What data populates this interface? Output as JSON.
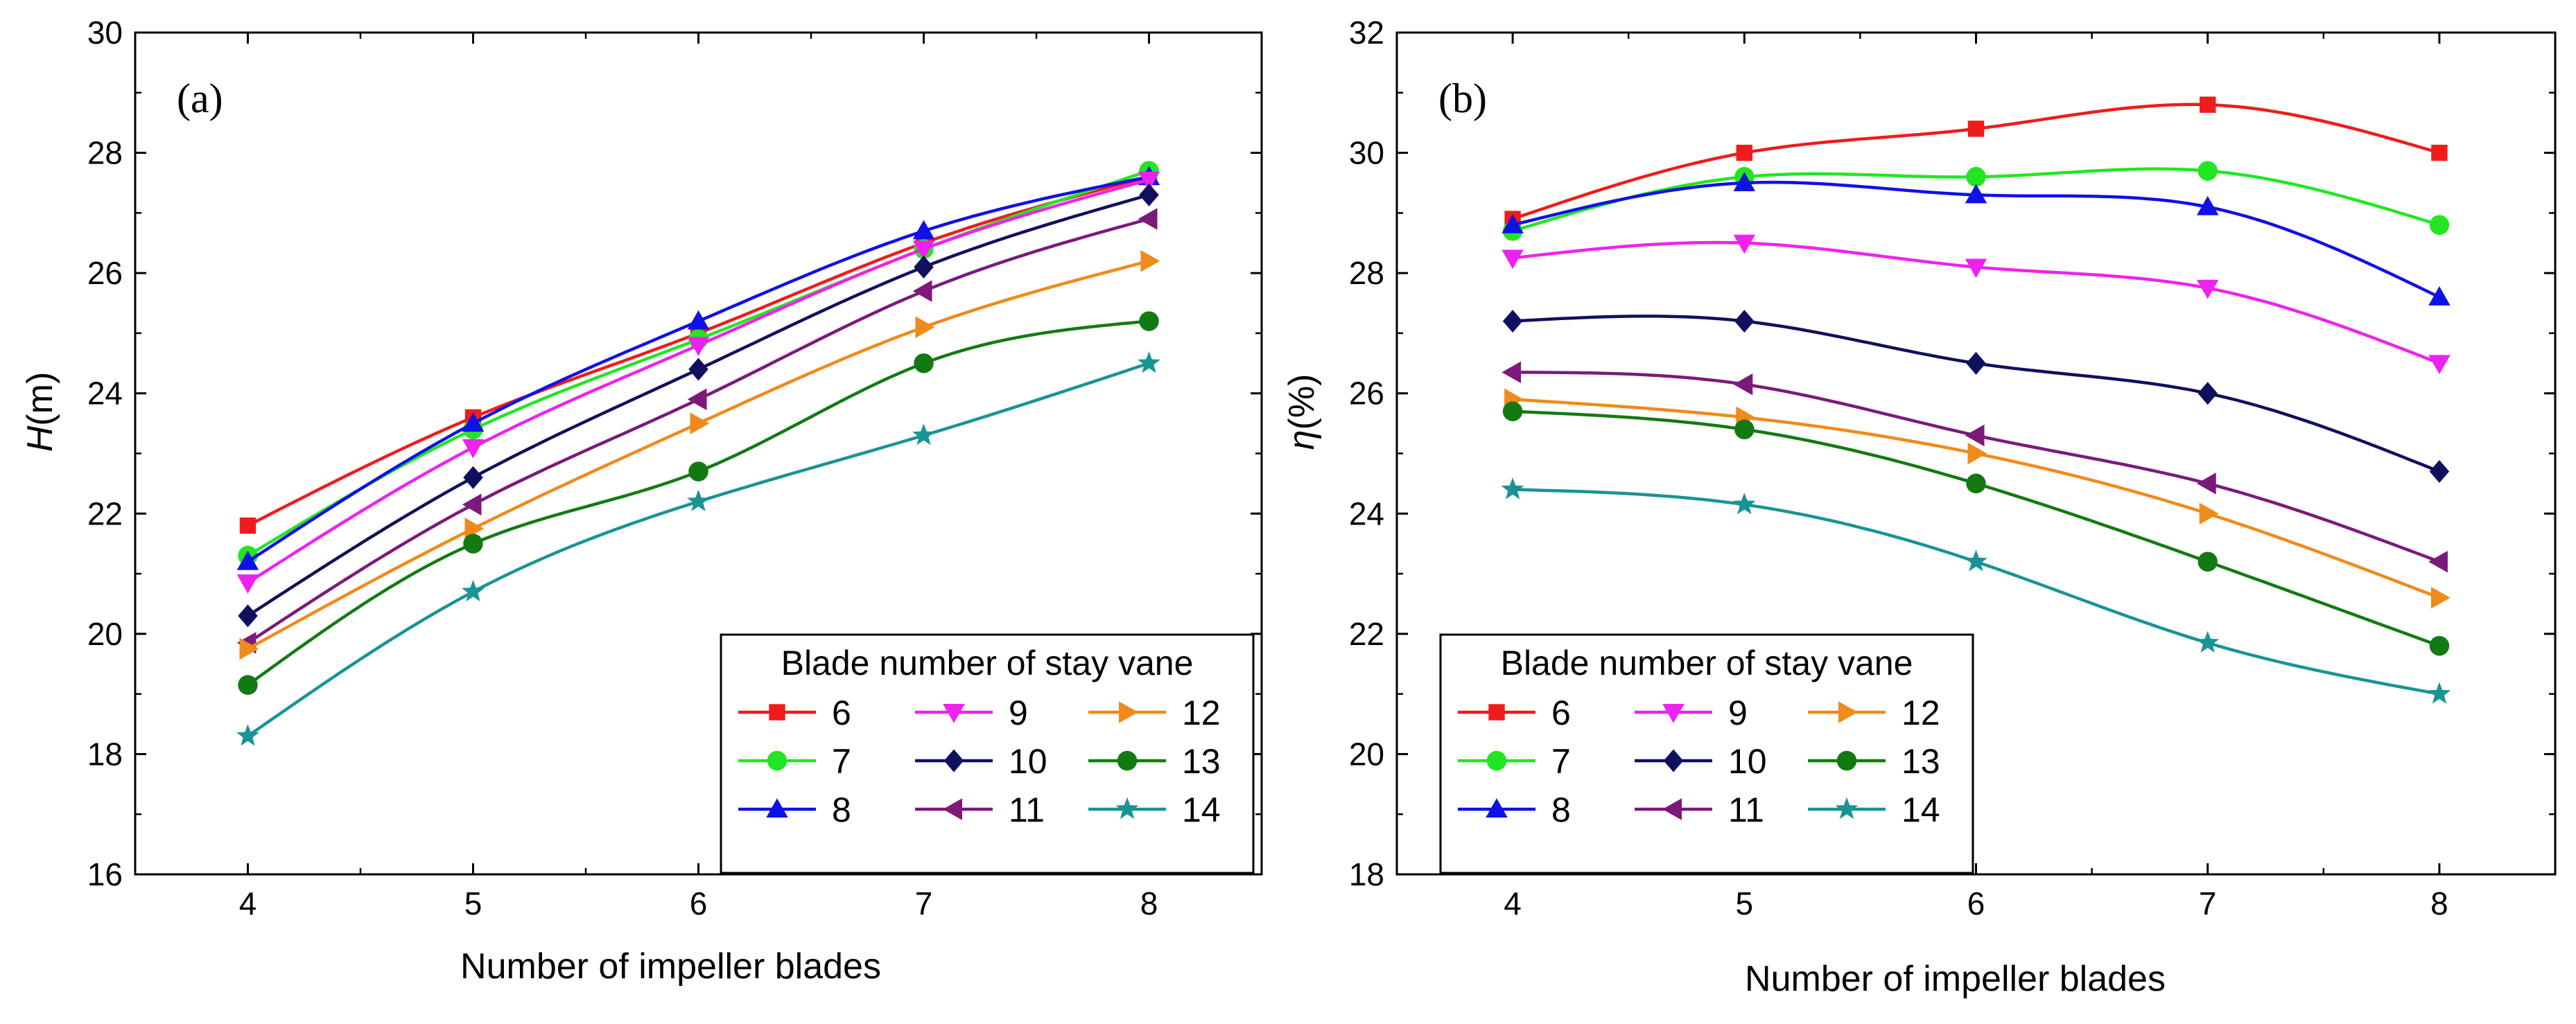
{
  "chart_data": [
    {
      "type": "line",
      "panel_label": "(a)",
      "xlabel": "Number of impeller blades",
      "ylabel_italic": "H",
      "ylabel_unit": "(m)",
      "x": [
        4,
        5,
        6,
        7,
        8
      ],
      "xlim": [
        3.5,
        8.5
      ],
      "ylim": [
        16,
        30
      ],
      "xticks": [
        "4",
        "5",
        "6",
        "7",
        "8"
      ],
      "yticks": [
        "16",
        "18",
        "20",
        "22",
        "24",
        "26",
        "28",
        "30"
      ],
      "grid": false,
      "legend": {
        "title": "Blade number of stay vane",
        "placement": "bottom-right"
      },
      "series": [
        {
          "name": "6",
          "color": "#ee1c1c",
          "marker": "square",
          "values": [
            21.8,
            23.6,
            25.0,
            26.5,
            27.6
          ]
        },
        {
          "name": "7",
          "color": "#22e622",
          "marker": "circle",
          "values": [
            21.3,
            23.4,
            24.9,
            26.4,
            27.7
          ]
        },
        {
          "name": "8",
          "color": "#1010e8",
          "marker": "triangle-up",
          "values": [
            21.2,
            23.5,
            25.2,
            26.7,
            27.6
          ]
        },
        {
          "name": "9",
          "color": "#ee22ee",
          "marker": "triangle-down",
          "values": [
            20.85,
            23.1,
            24.8,
            26.4,
            27.55
          ]
        },
        {
          "name": "10",
          "color": "#10105e",
          "marker": "diamond",
          "values": [
            20.3,
            22.6,
            24.4,
            26.1,
            27.3
          ]
        },
        {
          "name": "11",
          "color": "#7b1a7b",
          "marker": "triangle-left",
          "values": [
            19.85,
            22.15,
            23.9,
            25.7,
            26.9
          ]
        },
        {
          "name": "12",
          "color": "#f08a1a",
          "marker": "triangle-right",
          "values": [
            19.75,
            21.75,
            23.5,
            25.1,
            26.2
          ]
        },
        {
          "name": "13",
          "color": "#137a13",
          "marker": "circle",
          "values": [
            19.15,
            21.5,
            22.7,
            24.5,
            25.2
          ]
        },
        {
          "name": "14",
          "color": "#199494",
          "marker": "star",
          "values": [
            18.3,
            20.7,
            22.2,
            23.3,
            24.5
          ]
        }
      ]
    },
    {
      "type": "line",
      "panel_label": "(b)",
      "xlabel": "Number of impeller blades",
      "ylabel_italic": "η",
      "ylabel_unit": "(%)",
      "x": [
        4,
        5,
        6,
        7,
        8
      ],
      "xlim": [
        3.5,
        8.5
      ],
      "ylim": [
        18,
        32
      ],
      "xticks": [
        "4",
        "5",
        "6",
        "7",
        "8"
      ],
      "yticks": [
        "18",
        "20",
        "22",
        "24",
        "26",
        "28",
        "30",
        "32"
      ],
      "grid": false,
      "legend": {
        "title": "Blade number of stay vane",
        "placement": "bottom-left"
      },
      "series": [
        {
          "name": "6",
          "color": "#ee1c1c",
          "marker": "square",
          "values": [
            28.9,
            30.0,
            30.4,
            30.8,
            30.0
          ]
        },
        {
          "name": "7",
          "color": "#22e622",
          "marker": "circle",
          "values": [
            28.7,
            29.6,
            29.6,
            29.7,
            28.8
          ]
        },
        {
          "name": "8",
          "color": "#1010e8",
          "marker": "triangle-up",
          "values": [
            28.8,
            29.5,
            29.3,
            29.1,
            27.6
          ]
        },
        {
          "name": "9",
          "color": "#ee22ee",
          "marker": "triangle-down",
          "values": [
            28.25,
            28.5,
            28.1,
            27.75,
            26.5
          ]
        },
        {
          "name": "10",
          "color": "#10105e",
          "marker": "diamond",
          "values": [
            27.2,
            27.2,
            26.5,
            26.0,
            24.7
          ]
        },
        {
          "name": "11",
          "color": "#7b1a7b",
          "marker": "triangle-left",
          "values": [
            26.35,
            26.15,
            25.3,
            24.5,
            23.2
          ]
        },
        {
          "name": "12",
          "color": "#f08a1a",
          "marker": "triangle-right",
          "values": [
            25.9,
            25.6,
            25.0,
            24.0,
            22.6
          ]
        },
        {
          "name": "13",
          "color": "#137a13",
          "marker": "circle",
          "values": [
            25.7,
            25.4,
            24.5,
            23.2,
            21.8
          ]
        },
        {
          "name": "14",
          "color": "#199494",
          "marker": "star",
          "values": [
            24.4,
            24.15,
            23.2,
            21.85,
            21.0
          ]
        }
      ]
    }
  ]
}
